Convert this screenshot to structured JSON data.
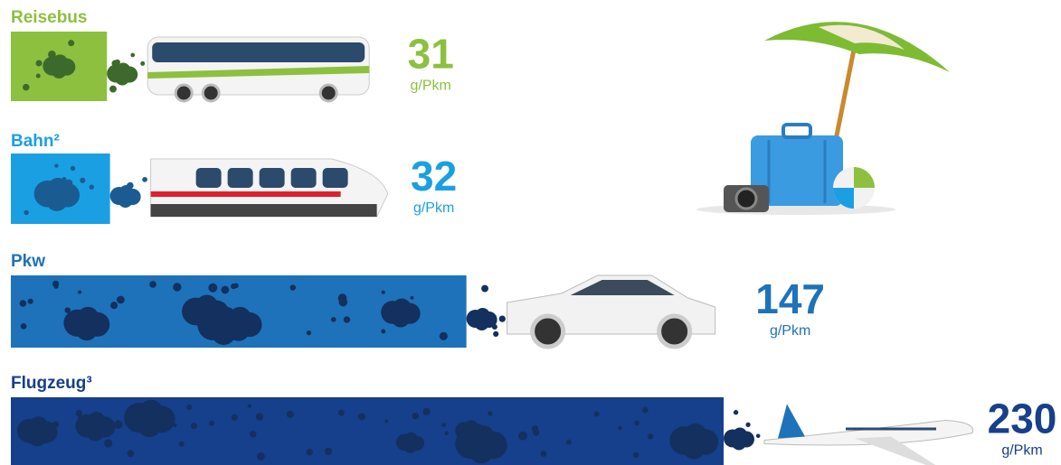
{
  "chart_data": {
    "type": "bar",
    "orientation": "horizontal",
    "categories": [
      "Reisebus",
      "Bahn²",
      "Pkw",
      "Flugzeug³"
    ],
    "values": [
      31,
      32,
      147,
      230
    ],
    "unit": "g/Pkm",
    "colors": [
      "#8cc03e",
      "#1aa0e2",
      "#1e72ba",
      "#163f8c"
    ]
  }
}
